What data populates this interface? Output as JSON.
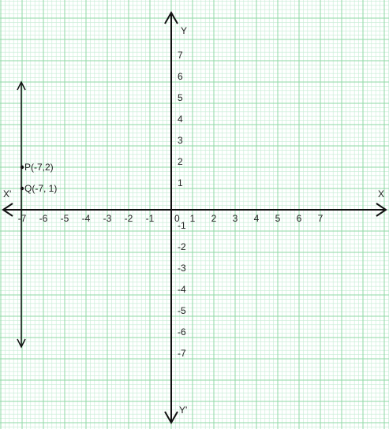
{
  "colors": {
    "paper": "#ffffff",
    "grid_minor": "#c6ecd4",
    "grid_major": "#8fd8a6",
    "axis": "#111111",
    "text": "#222222"
  },
  "axes": {
    "x_label": "X",
    "x_neg_label": "X'",
    "y_label": "Y",
    "y_neg_label": "Y'",
    "origin_label": "0",
    "x_ticks": [
      "-7",
      "-6",
      "-5",
      "-4",
      "-3",
      "-2",
      "-1",
      "1",
      "2",
      "3",
      "4",
      "5",
      "6",
      "7"
    ],
    "y_ticks": [
      "7",
      "6",
      "5",
      "4",
      "3",
      "2",
      "1",
      "-1",
      "-2",
      "-3",
      "-4",
      "-5",
      "-6",
      "-7"
    ]
  },
  "points": [
    {
      "label": "P(-7,2)",
      "x": -7,
      "y": 2
    },
    {
      "label": "Q(-7, 1)",
      "x": -7,
      "y": 1
    }
  ],
  "line": {
    "x": -7,
    "type": "vertical line through P and Q",
    "arrows": "both ends"
  }
}
